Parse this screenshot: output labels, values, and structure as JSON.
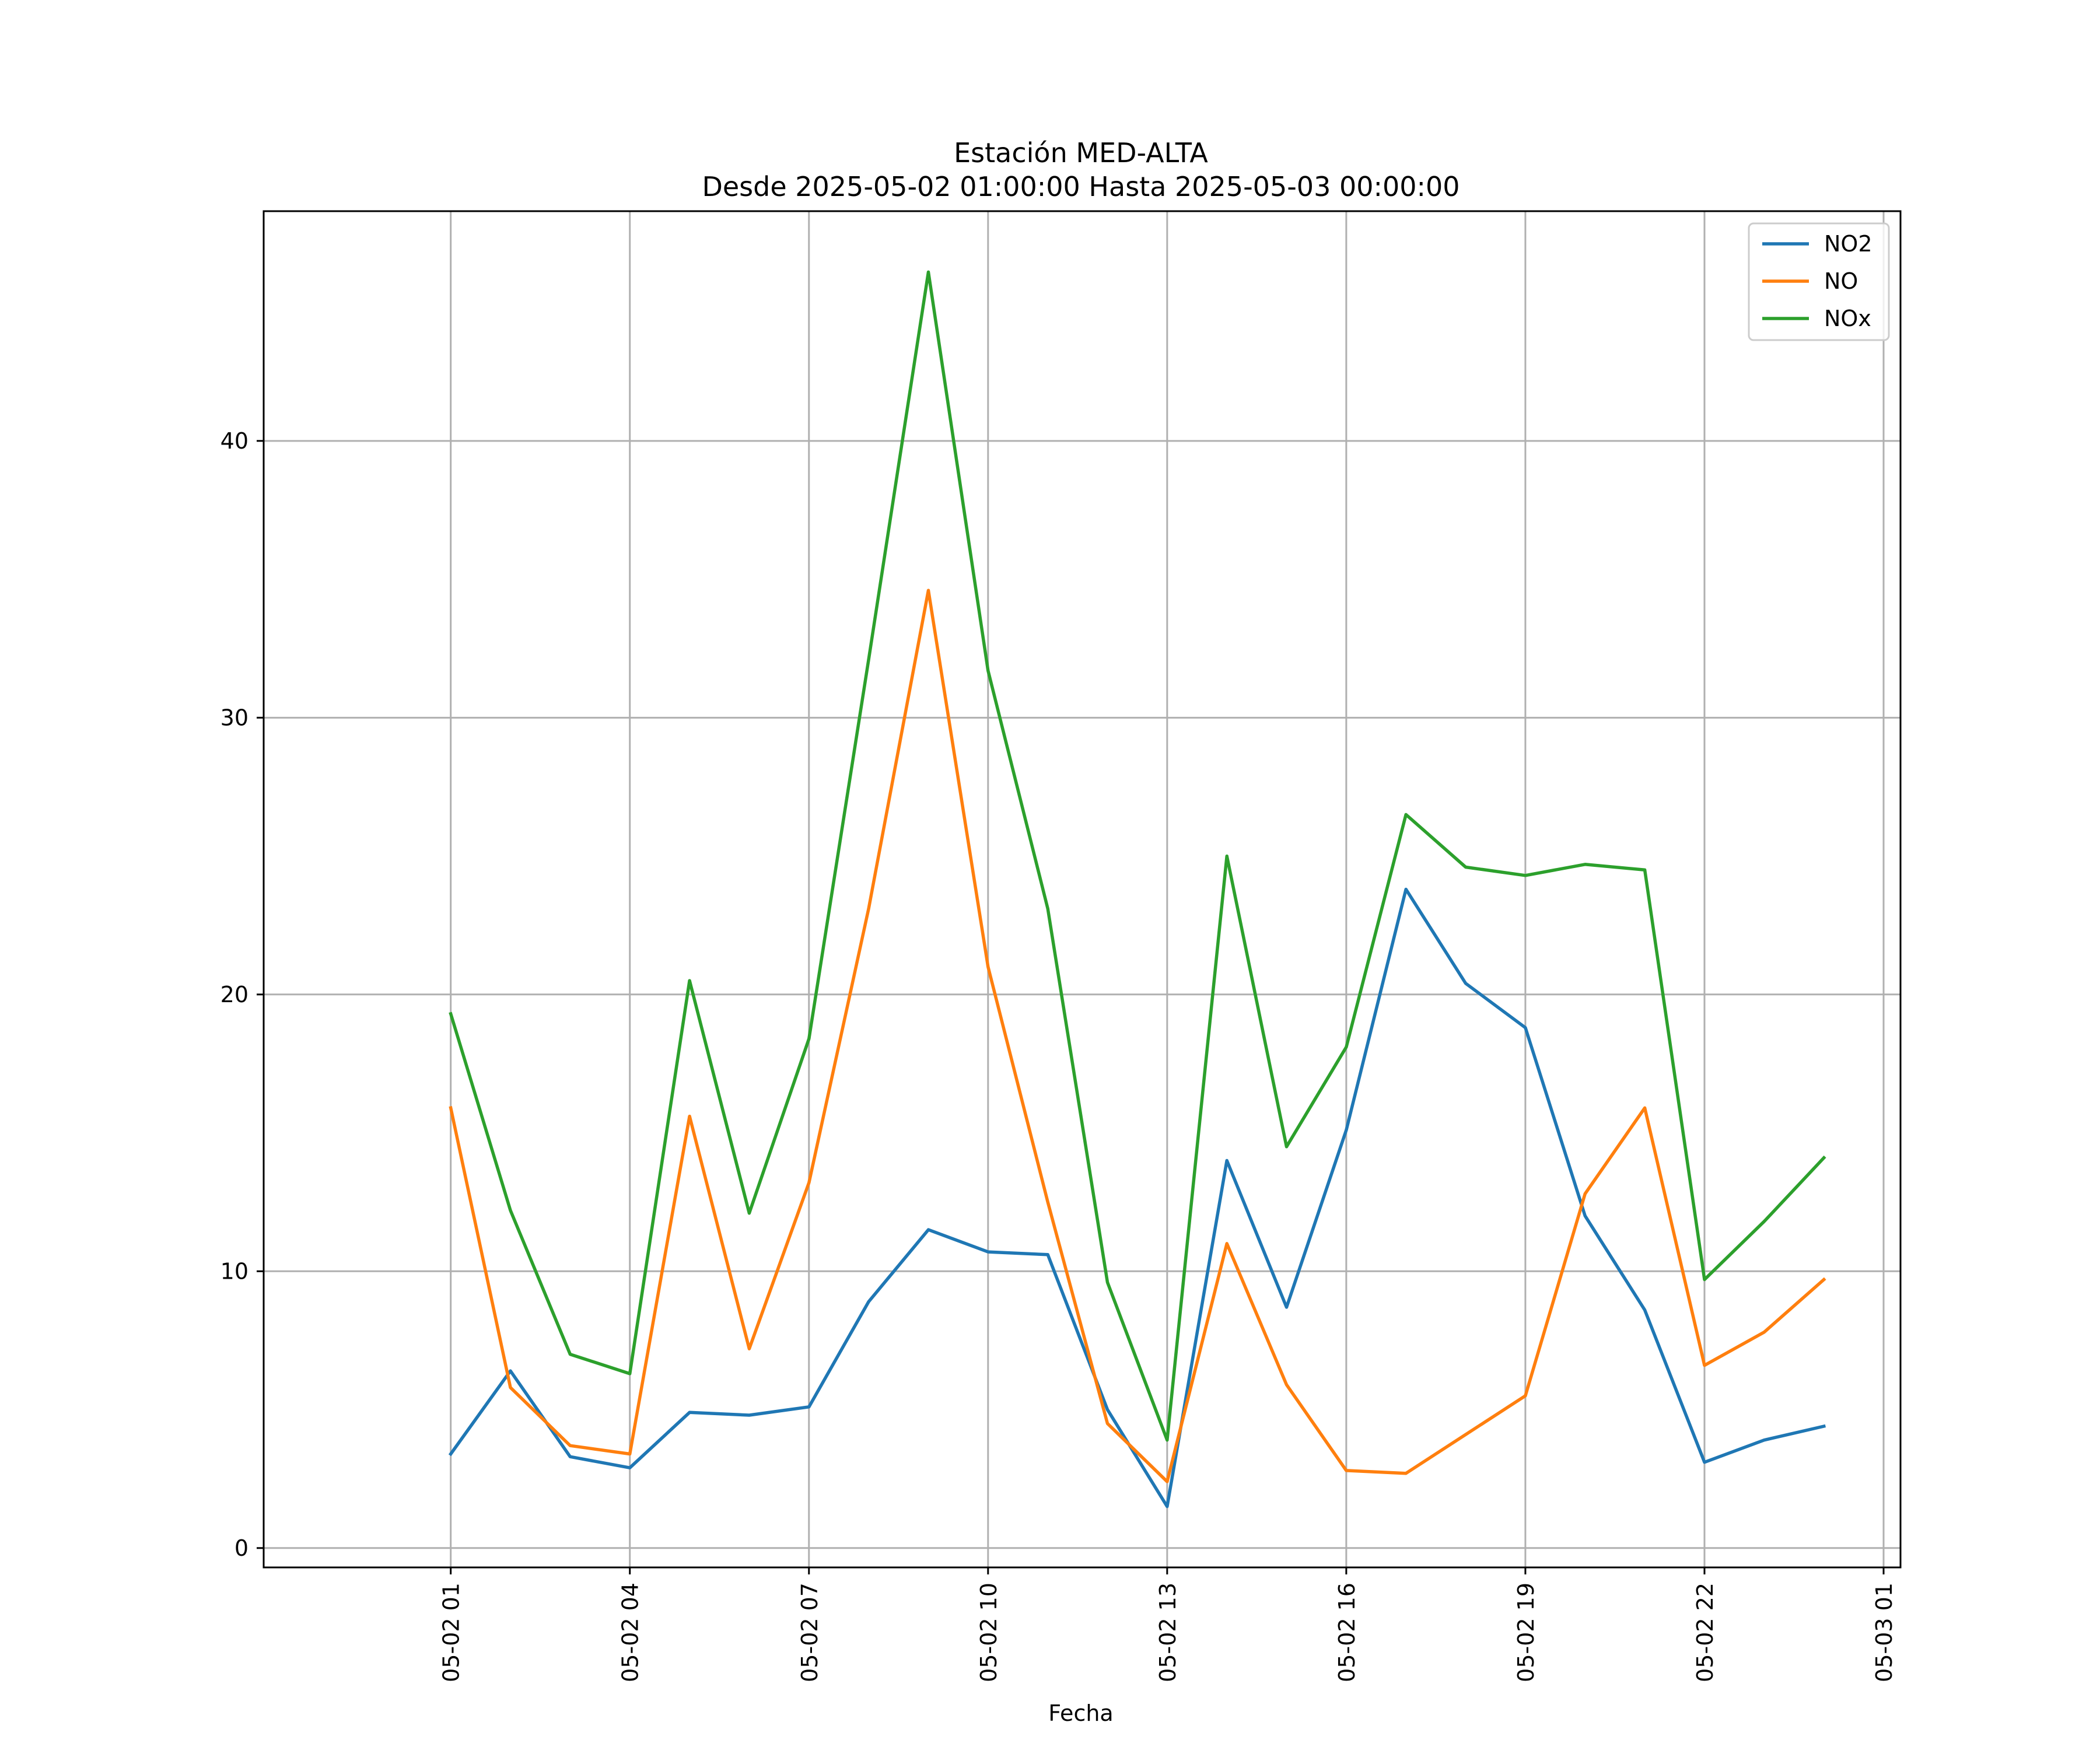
{
  "chart_data": {
    "type": "line",
    "title": "Estación MED-ALTA",
    "subtitle": "Desde 2025-05-02 01:00:00 Hasta 2025-05-03 00:00:00",
    "xlabel": "Fecha",
    "ylabel": "",
    "x": [
      "2025-05-02 01:00",
      "2025-05-02 02:00",
      "2025-05-02 03:00",
      "2025-05-02 04:00",
      "2025-05-02 05:00",
      "2025-05-02 06:00",
      "2025-05-02 07:00",
      "2025-05-02 08:00",
      "2025-05-02 09:00",
      "2025-05-02 10:00",
      "2025-05-02 11:00",
      "2025-05-02 12:00",
      "2025-05-02 13:00",
      "2025-05-02 14:00",
      "2025-05-02 15:00",
      "2025-05-02 16:00",
      "2025-05-02 17:00",
      "2025-05-02 18:00",
      "2025-05-02 19:00",
      "2025-05-02 20:00",
      "2025-05-02 21:00",
      "2025-05-02 22:00",
      "2025-05-02 23:00",
      "2025-05-03 00:00"
    ],
    "xticks": [
      "05-02 01",
      "05-02 04",
      "05-02 07",
      "05-02 10",
      "05-02 13",
      "05-02 16",
      "05-02 19",
      "05-02 22",
      "05-03 01"
    ],
    "xlim": [
      "2025-05-01 21:52",
      "2025-05-03 01:17"
    ],
    "yticks": [
      0,
      10,
      20,
      30,
      40
    ],
    "ylim": [
      -0.7,
      48.3
    ],
    "grid": true,
    "legend_position": "top-right",
    "series": [
      {
        "name": "NO2",
        "color": "#1f77b4",
        "values": [
          3.4,
          6.4,
          3.3,
          2.9,
          4.9,
          4.8,
          5.1,
          8.9,
          11.5,
          10.7,
          10.6,
          5.0,
          1.5,
          14.0,
          8.7,
          15.1,
          23.8,
          20.4,
          18.8,
          12.0,
          8.6,
          3.1,
          3.9,
          4.4
        ]
      },
      {
        "name": "NO",
        "color": "#ff7f0e",
        "values": [
          15.9,
          5.8,
          3.7,
          3.4,
          15.6,
          7.2,
          13.2,
          23.1,
          34.6,
          21.0,
          12.5,
          4.5,
          2.4,
          11.0,
          5.9,
          2.8,
          2.7,
          4.1,
          5.5,
          12.8,
          15.9,
          6.6,
          7.8,
          9.7
        ]
      },
      {
        "name": "NOx",
        "color": "#2ca02c",
        "values": [
          19.3,
          12.2,
          7.0,
          6.3,
          20.5,
          12.1,
          18.4,
          32.1,
          46.1,
          31.7,
          23.1,
          9.6,
          3.9,
          25.0,
          14.5,
          18.1,
          26.5,
          24.6,
          24.3,
          24.7,
          24.5,
          9.7,
          11.8,
          14.1
        ]
      }
    ]
  }
}
